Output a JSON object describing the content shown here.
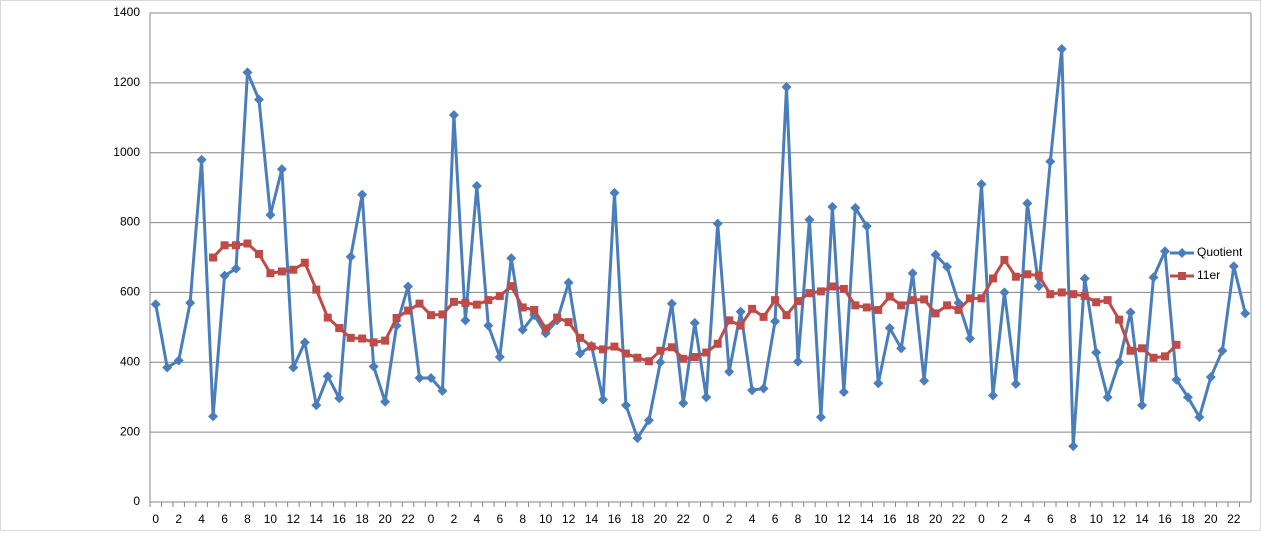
{
  "chart_data": {
    "type": "line",
    "categories": [
      "0",
      null,
      "2",
      null,
      "4",
      null,
      "6",
      null,
      "8",
      null,
      "10",
      null,
      "12",
      null,
      "14",
      null,
      "16",
      null,
      "18",
      null,
      "20",
      null,
      "22",
      null,
      "0",
      null,
      "2",
      null,
      "4",
      null,
      "6",
      null,
      "8",
      null,
      "10",
      null,
      "12",
      null,
      "14",
      null,
      "16",
      null,
      "18",
      null,
      "20",
      null,
      "22",
      null,
      "0",
      null,
      "2",
      null,
      "4",
      null,
      "6",
      null,
      "8",
      null,
      "10",
      null,
      "12",
      null,
      "14",
      null,
      "16",
      null,
      "18",
      null,
      "20",
      null,
      "22",
      null,
      "0",
      null,
      "2",
      null,
      "4",
      null,
      "6",
      null,
      "8",
      null,
      "10",
      null,
      "12",
      null,
      "14",
      null,
      "16",
      null,
      "18",
      null,
      "20",
      null,
      "22",
      null
    ],
    "series": [
      {
        "name": "Quotient",
        "color": "#4a7ebb",
        "marker": "diamond",
        "values": [
          566,
          385,
          405,
          570,
          980,
          245,
          648,
          668,
          1230,
          1152,
          822,
          953,
          385,
          457,
          277,
          360,
          297,
          702,
          880,
          388,
          287,
          505,
          617,
          355,
          355,
          318,
          1108,
          520,
          905,
          505,
          415,
          698,
          493,
          535,
          483,
          520,
          628,
          425,
          447,
          293,
          885,
          277,
          183,
          234,
          400,
          568,
          283,
          513,
          300,
          797,
          373,
          545,
          320,
          325,
          517,
          1188,
          402,
          808,
          243,
          845,
          315,
          842,
          790,
          340,
          498,
          440,
          655,
          347,
          708,
          673,
          570,
          468,
          910,
          305,
          600,
          338,
          855,
          618,
          975,
          1297,
          160,
          640,
          428,
          300,
          400,
          543,
          277,
          643,
          718,
          350,
          300,
          243,
          358,
          433,
          675,
          540
        ]
      },
      {
        "name": "11er",
        "color": "#be4b48",
        "marker": "square",
        "values": [
          null,
          null,
          null,
          null,
          null,
          700,
          735,
          735,
          740,
          710,
          655,
          660,
          665,
          685,
          608,
          528,
          498,
          470,
          468,
          457,
          462,
          527,
          548,
          568,
          535,
          537,
          573,
          570,
          565,
          578,
          590,
          618,
          557,
          550,
          497,
          528,
          515,
          470,
          445,
          437,
          445,
          425,
          413,
          403,
          433,
          443,
          410,
          415,
          428,
          453,
          520,
          505,
          553,
          530,
          578,
          535,
          575,
          598,
          603,
          617,
          610,
          563,
          557,
          550,
          588,
          563,
          578,
          580,
          540,
          563,
          550,
          583,
          583,
          640,
          693,
          645,
          652,
          648,
          595,
          600,
          595,
          590,
          572,
          578,
          522,
          433,
          440,
          413,
          417,
          450,
          null,
          null,
          null,
          null,
          null,
          null
        ]
      }
    ],
    "ylim": [
      0,
      1400
    ],
    "yticks": [
      0,
      200,
      400,
      600,
      800,
      1000,
      1200,
      1400
    ],
    "grid": true,
    "legend": "right"
  }
}
